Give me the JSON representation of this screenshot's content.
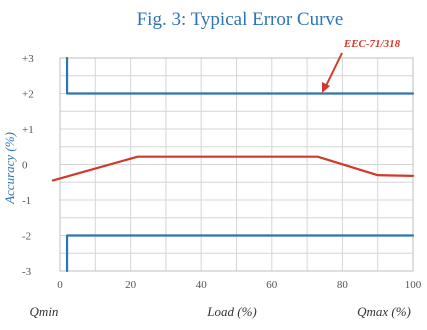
{
  "chart_data": {
    "type": "line",
    "title": "Fig. 3: Typical Error Curve",
    "xlabel": "Load (%)",
    "ylabel": "Accuracy (%)",
    "xlim": [
      0,
      100
    ],
    "ylim": [
      -3,
      3
    ],
    "x_ticks": [
      0,
      20,
      40,
      60,
      80,
      100
    ],
    "x_tick_labels": [
      "0",
      "20",
      "40",
      "60",
      "80",
      "100"
    ],
    "y_ticks": [
      3,
      2,
      1,
      0,
      -1,
      -2,
      -3
    ],
    "y_tick_labels": [
      "+3",
      "+2",
      "+1",
      "0",
      "-1",
      "-2",
      "-3"
    ],
    "grid": true,
    "bottom_labels": {
      "qmin": "Qmin",
      "qmax": "Qmax (%)"
    },
    "annotation": "EEC-71/318",
    "series": [
      {
        "role": "error-limit-upper",
        "color": "#2e74b5",
        "points": [
          [
            2,
            3
          ],
          [
            2,
            2
          ],
          [
            100,
            2
          ]
        ]
      },
      {
        "role": "error-limit-lower",
        "color": "#2e74b5",
        "points": [
          [
            2,
            -3
          ],
          [
            2,
            -2
          ],
          [
            100,
            -2
          ]
        ]
      },
      {
        "role": "typical-error",
        "color": "#d03a2a",
        "points": [
          [
            -2,
            -0.45
          ],
          [
            22,
            0.22
          ],
          [
            73,
            0.22
          ],
          [
            90,
            -0.3
          ],
          [
            100,
            -0.32
          ]
        ]
      }
    ],
    "colors": {
      "title": "#2e74b5",
      "ylabel": "#2e74b5",
      "grid": "#d6d6d6",
      "axis_text": "#555555",
      "annotation": "#d03a2a"
    }
  }
}
